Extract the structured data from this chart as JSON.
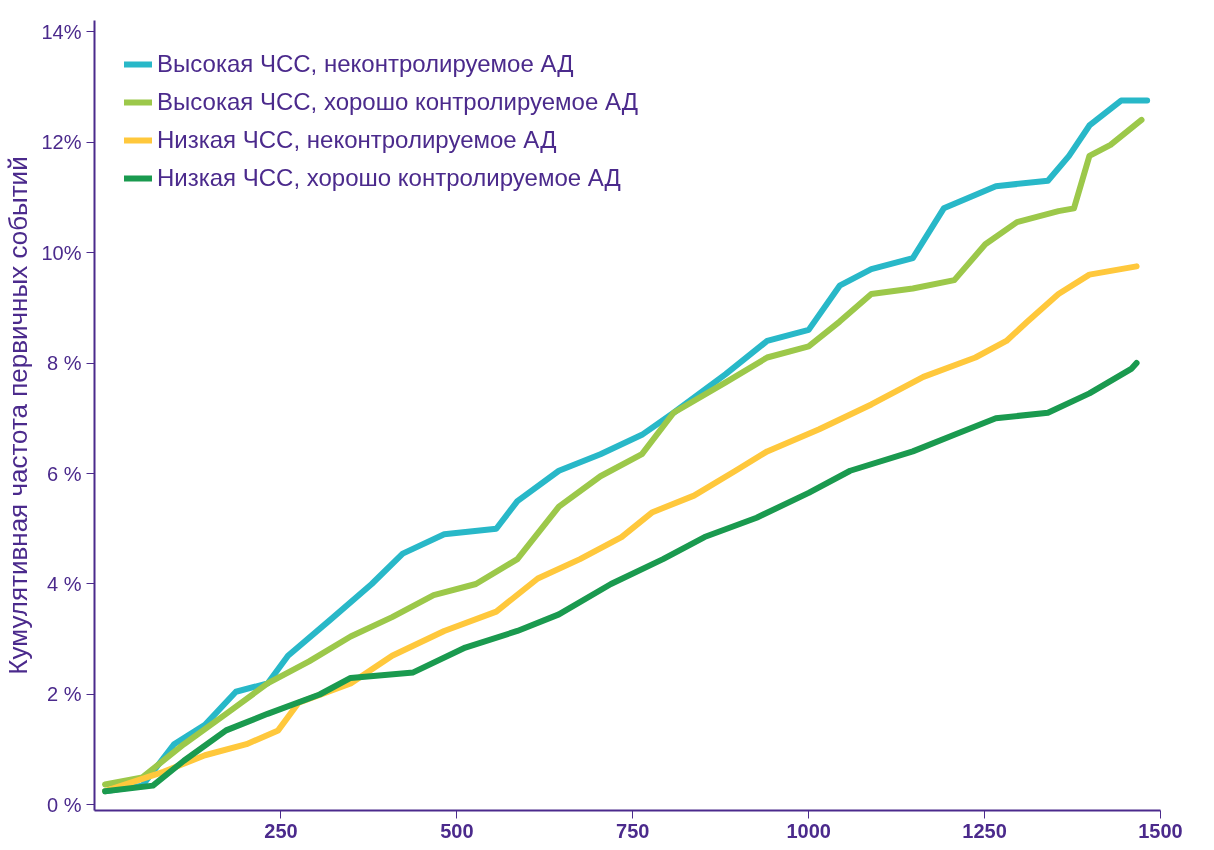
{
  "chart_data": {
    "type": "line",
    "ylabel": "Кумулятивная частота первичных событий",
    "xlim": [
      -15,
      1500
    ],
    "xticks": [
      250,
      500,
      750,
      1000,
      1250,
      1500
    ],
    "ylim": [
      -0.1,
      14.2
    ],
    "yticks": [
      {
        "value": 0,
        "label": "0 %"
      },
      {
        "value": 2,
        "label": "2 %"
      },
      {
        "value": 4,
        "label": "4 %"
      },
      {
        "value": 6,
        "label": "6 %"
      },
      {
        "value": 8,
        "label": "8 %"
      },
      {
        "value": 10,
        "label": "10%"
      },
      {
        "value": 12,
        "label": "12%"
      },
      {
        "value": 14,
        "label": "14%"
      }
    ],
    "grid": false,
    "legend": "top left",
    "line_style": "solid",
    "marker": "none",
    "series": [
      {
        "name": "Высокая ЧСС, неконтролируемое АД",
        "color": "#28b8c8",
        "x": [
          0,
          53,
          98,
          142,
          186,
          231,
          260,
          320,
          379,
          423,
          482,
          556,
          586,
          645,
          704,
          763,
          808,
          882,
          941,
          1000,
          1044,
          1089,
          1148,
          1192,
          1266,
          1340,
          1370,
          1399,
          1444,
          1481
        ],
        "values": [
          0.25,
          0.35,
          1.1,
          1.45,
          2.05,
          2.2,
          2.7,
          3.35,
          4.0,
          4.55,
          4.9,
          5.0,
          5.5,
          6.05,
          6.35,
          6.7,
          7.1,
          7.8,
          8.4,
          8.6,
          9.4,
          9.7,
          9.9,
          10.8,
          11.2,
          11.3,
          11.75,
          12.3,
          12.75,
          12.75
        ]
      },
      {
        "name": "Высокая ЧСС, хорошо контролируемое АД",
        "color": "#9cc84a",
        "x": [
          0,
          53,
          112,
          172,
          231,
          290,
          349,
          408,
          467,
          527,
          586,
          645,
          704,
          763,
          808,
          882,
          941,
          1000,
          1044,
          1089,
          1148,
          1207,
          1251,
          1296,
          1355,
          1377,
          1399,
          1429,
          1473
        ],
        "values": [
          0.37,
          0.5,
          1.1,
          1.65,
          2.2,
          2.6,
          3.05,
          3.4,
          3.8,
          4.0,
          4.45,
          5.4,
          5.95,
          6.35,
          7.1,
          7.65,
          8.1,
          8.3,
          8.75,
          9.25,
          9.35,
          9.5,
          10.15,
          10.55,
          10.75,
          10.8,
          11.75,
          11.95,
          12.4
        ]
      },
      {
        "name": "Низкая ЧСС, неконтролируемое АД",
        "color": "#ffc83c",
        "x": [
          0,
          83,
          142,
          201,
          246,
          275,
          349,
          408,
          482,
          556,
          615,
          675,
          734,
          778,
          837,
          896,
          941,
          1015,
          1089,
          1163,
          1237,
          1281,
          1311,
          1355,
          1399,
          1466
        ],
        "values": [
          0.25,
          0.6,
          0.9,
          1.1,
          1.35,
          1.85,
          2.2,
          2.7,
          3.15,
          3.5,
          4.1,
          4.45,
          4.85,
          5.3,
          5.6,
          6.05,
          6.4,
          6.8,
          7.25,
          7.75,
          8.1,
          8.4,
          8.75,
          9.25,
          9.6,
          9.75
        ]
      },
      {
        "name": "Низкая ЧСС, хорошо контролируемое АД",
        "color": "#1a9a4f",
        "x": [
          0,
          68,
          112,
          172,
          231,
          305,
          349,
          438,
          512,
          586,
          645,
          719,
          793,
          852,
          926,
          1000,
          1059,
          1148,
          1207,
          1266,
          1340,
          1399,
          1459,
          1466
        ],
        "values": [
          0.25,
          0.35,
          0.8,
          1.35,
          1.65,
          2.0,
          2.3,
          2.4,
          2.85,
          3.15,
          3.45,
          4.0,
          4.45,
          4.85,
          5.2,
          5.65,
          6.05,
          6.4,
          6.7,
          7.0,
          7.1,
          7.45,
          7.9,
          8.0
        ]
      }
    ]
  }
}
